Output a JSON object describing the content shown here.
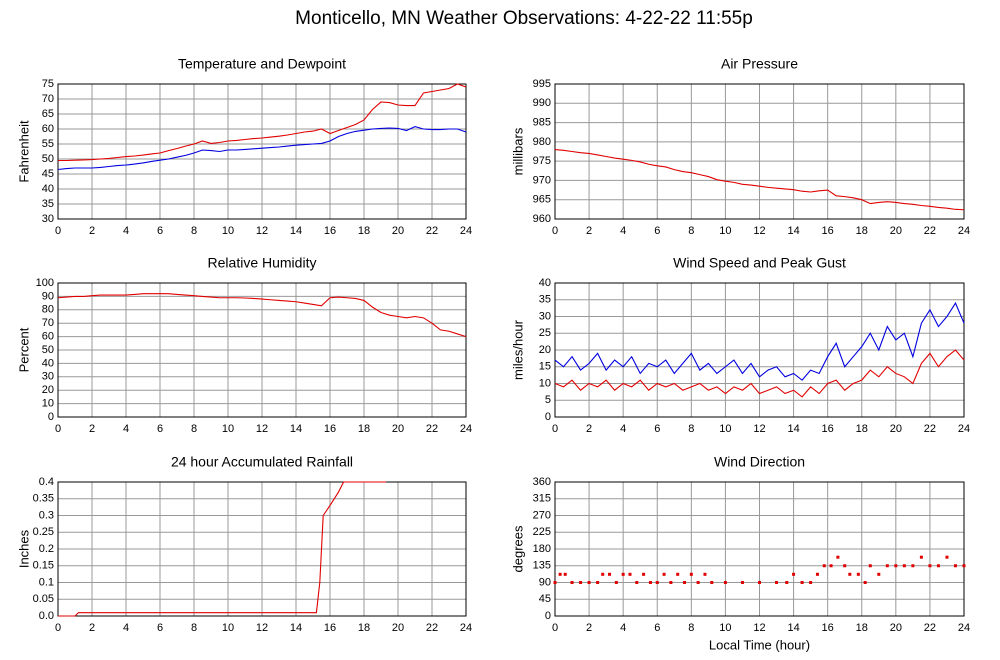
{
  "title": "Monticello, MN Weather Observations: 4-22-22 11:55p",
  "chart_data": [
    {
      "type": "line",
      "title": "Temperature and Dewpoint",
      "ylabel": "Fahrenheit",
      "x": [
        0,
        0.5,
        1,
        1.5,
        2,
        2.5,
        3,
        3.5,
        4,
        4.5,
        5,
        5.5,
        6,
        6.5,
        7,
        7.5,
        8,
        8.5,
        9,
        9.5,
        10,
        10.5,
        11,
        11.5,
        12,
        12.5,
        13,
        13.5,
        14,
        14.5,
        15,
        15.5,
        16,
        16.5,
        17,
        17.5,
        18,
        18.5,
        19,
        19.5,
        20,
        20.5,
        21,
        21.5,
        22,
        22.5,
        23,
        23.5,
        24
      ],
      "series": [
        {
          "color": "#e00000",
          "values": [
            49.5,
            49.5,
            49.6,
            49.7,
            49.8,
            50,
            50.2,
            50.5,
            50.8,
            51,
            51.3,
            51.7,
            52,
            52.8,
            53.5,
            54.3,
            55,
            56,
            55.2,
            55.5,
            56,
            56.2,
            56.5,
            56.8,
            57,
            57.3,
            57.6,
            58,
            58.5,
            59,
            59.3,
            60,
            58.5,
            59.5,
            60.5,
            61.5,
            63,
            66.5,
            69,
            68.8,
            68,
            67.8,
            67.8,
            72,
            72.5,
            73,
            73.5,
            75,
            74
          ]
        },
        {
          "color": "#0000e0",
          "values": [
            46.5,
            46.8,
            47,
            47,
            47,
            47.2,
            47.5,
            47.8,
            48,
            48.3,
            48.7,
            49.2,
            49.6,
            50,
            50.6,
            51.2,
            52,
            53,
            52.8,
            52.5,
            53,
            53,
            53.2,
            53.4,
            53.6,
            53.8,
            54,
            54.3,
            54.6,
            54.8,
            55,
            55.2,
            56,
            57.5,
            58.5,
            59.2,
            59.6,
            60,
            60.2,
            60.3,
            60.2,
            59.5,
            60.8,
            60,
            59.8,
            59.8,
            60,
            60,
            59
          ]
        }
      ],
      "xlim": [
        0,
        24
      ],
      "xticks": [
        0,
        2,
        4,
        6,
        8,
        10,
        12,
        14,
        16,
        18,
        20,
        22,
        24
      ],
      "ylim": [
        30,
        75
      ],
      "yticks": [
        30,
        35,
        40,
        45,
        50,
        55,
        60,
        65,
        70,
        75
      ],
      "grid": true
    },
    {
      "type": "line",
      "title": "Air Pressure",
      "ylabel": "millibars",
      "x": [
        0,
        0.5,
        1,
        1.5,
        2,
        2.5,
        3,
        3.5,
        4,
        4.5,
        5,
        5.5,
        6,
        6.5,
        7,
        7.5,
        8,
        8.5,
        9,
        9.5,
        10,
        10.5,
        11,
        11.5,
        12,
        12.5,
        13,
        13.5,
        14,
        14.5,
        15,
        15.5,
        16,
        16.5,
        17,
        17.5,
        18,
        18.5,
        19,
        19.5,
        20,
        20.5,
        21,
        21.5,
        22,
        22.5,
        23,
        23.5,
        24
      ],
      "series": [
        {
          "color": "#e00000",
          "values": [
            978,
            977.8,
            977.5,
            977.2,
            977,
            976.6,
            976.2,
            975.8,
            975.5,
            975.2,
            974.8,
            974.2,
            973.8,
            973.5,
            972.8,
            972.3,
            972,
            971.5,
            971,
            970.2,
            969.8,
            969.5,
            969,
            968.8,
            968.5,
            968.2,
            968,
            967.8,
            967.6,
            967.2,
            967,
            967.3,
            967.5,
            966,
            965.8,
            965.5,
            965,
            964,
            964.3,
            964.5,
            964.3,
            964,
            963.8,
            963.5,
            963.3,
            963,
            962.8,
            962.5,
            962.4
          ]
        }
      ],
      "xlim": [
        0,
        24
      ],
      "xticks": [
        0,
        2,
        4,
        6,
        8,
        10,
        12,
        14,
        16,
        18,
        20,
        22,
        24
      ],
      "ylim": [
        960,
        995
      ],
      "yticks": [
        960,
        965,
        970,
        975,
        980,
        985,
        990,
        995
      ],
      "grid": true
    },
    {
      "type": "line",
      "title": "Relative Humidity",
      "ylabel": "Percent",
      "x": [
        0,
        0.5,
        1,
        1.5,
        2,
        2.5,
        3,
        3.5,
        4,
        4.5,
        5,
        5.5,
        6,
        6.5,
        7,
        7.5,
        8,
        8.5,
        9,
        9.5,
        10,
        10.5,
        11,
        11.5,
        12,
        12.5,
        13,
        13.5,
        14,
        14.5,
        15,
        15.5,
        16,
        16.5,
        17,
        17.5,
        18,
        18.5,
        19,
        19.5,
        20,
        20.5,
        21,
        21.5,
        22,
        22.5,
        23,
        23.5,
        24
      ],
      "series": [
        {
          "color": "#e00000",
          "values": [
            89,
            89.5,
            90,
            90,
            90.5,
            91,
            91,
            91,
            91,
            91.5,
            92,
            92,
            92,
            92,
            91.5,
            91,
            90.5,
            90,
            89.5,
            89,
            89,
            89,
            88.8,
            88.5,
            88,
            87.5,
            87,
            86.5,
            86,
            85,
            84,
            83,
            89,
            89.5,
            89,
            88.5,
            87,
            82,
            78,
            76,
            75,
            74,
            75,
            74,
            70,
            65,
            64,
            62,
            60
          ]
        }
      ],
      "xlim": [
        0,
        24
      ],
      "xticks": [
        0,
        2,
        4,
        6,
        8,
        10,
        12,
        14,
        16,
        18,
        20,
        22,
        24
      ],
      "ylim": [
        0,
        100
      ],
      "yticks": [
        0,
        10,
        20,
        30,
        40,
        50,
        60,
        70,
        80,
        90,
        100
      ],
      "grid": true
    },
    {
      "type": "line",
      "title": "Wind Speed and Peak Gust",
      "ylabel": "miles/hour",
      "x": [
        0,
        0.5,
        1,
        1.5,
        2,
        2.5,
        3,
        3.5,
        4,
        4.5,
        5,
        5.5,
        6,
        6.5,
        7,
        7.5,
        8,
        8.5,
        9,
        9.5,
        10,
        10.5,
        11,
        11.5,
        12,
        12.5,
        13,
        13.5,
        14,
        14.5,
        15,
        15.5,
        16,
        16.5,
        17,
        17.5,
        18,
        18.5,
        19,
        19.5,
        20,
        20.5,
        21,
        21.5,
        22,
        22.5,
        23,
        23.5,
        24
      ],
      "series": [
        {
          "color": "#0000e0",
          "values": [
            17,
            15,
            18,
            14,
            16,
            19,
            14,
            17,
            15,
            18,
            13,
            16,
            15,
            17,
            13,
            16,
            19,
            14,
            16,
            13,
            15,
            17,
            13,
            16,
            12,
            14,
            15,
            12,
            13,
            11,
            14,
            13,
            18,
            22,
            15,
            18,
            21,
            25,
            20,
            27,
            23,
            25,
            18,
            28,
            32,
            27,
            30,
            34,
            28
          ]
        },
        {
          "color": "#e00000",
          "values": [
            10,
            9,
            11,
            8,
            10,
            9,
            11,
            8,
            10,
            9,
            11,
            8,
            10,
            9,
            10,
            8,
            9,
            10,
            8,
            9,
            7,
            9,
            8,
            10,
            7,
            8,
            9,
            7,
            8,
            6,
            9,
            7,
            10,
            11,
            8,
            10,
            11,
            14,
            12,
            15,
            13,
            12,
            10,
            16,
            19,
            15,
            18,
            20,
            17
          ]
        }
      ],
      "xlim": [
        0,
        24
      ],
      "xticks": [
        0,
        2,
        4,
        6,
        8,
        10,
        12,
        14,
        16,
        18,
        20,
        22,
        24
      ],
      "ylim": [
        0,
        40
      ],
      "yticks": [
        0,
        5,
        10,
        15,
        20,
        25,
        30,
        35,
        40
      ],
      "grid": true
    },
    {
      "type": "line",
      "title": "24 hour Accumulated Rainfall",
      "ylabel": "Inches",
      "x": [
        0,
        1,
        1.2,
        15.2,
        15.4,
        15.6,
        16,
        16.5,
        16.8,
        19.3
      ],
      "series": [
        {
          "color": "#e00000",
          "values": [
            0,
            0,
            0.01,
            0.01,
            0.1,
            0.3,
            0.33,
            0.37,
            0.4,
            0.4
          ]
        }
      ],
      "xlim": [
        0,
        24
      ],
      "xticks": [
        0,
        2,
        4,
        6,
        8,
        10,
        12,
        14,
        16,
        18,
        20,
        22,
        24
      ],
      "ylim": [
        0,
        0.4
      ],
      "yticks": [
        {
          "value": 0,
          "label": "0.0"
        },
        0.05,
        0.1,
        0.15,
        0.2,
        0.25,
        0.3,
        0.35,
        0.4
      ],
      "grid": true
    },
    {
      "type": "scatter",
      "title": "Wind Direction",
      "ylabel": "degrees",
      "xlabel": "Local Time (hour)",
      "x": [
        0,
        0.3,
        0.6,
        1,
        1.5,
        2,
        2.5,
        2.8,
        3.2,
        3.6,
        4,
        4.4,
        4.8,
        5.2,
        5.6,
        6,
        6.4,
        6.8,
        7.2,
        7.6,
        8,
        8.4,
        8.8,
        9.2,
        10,
        11,
        12,
        13,
        13.6,
        14,
        14.5,
        15,
        15.4,
        15.8,
        16.2,
        16.6,
        17,
        17.3,
        17.8,
        18.2,
        18.5,
        19,
        19.5,
        20,
        20.5,
        21,
        21.5,
        22,
        22.5,
        23,
        23.5,
        24
      ],
      "series": [
        {
          "color": "#e00000",
          "values": [
            90,
            112,
            112,
            90,
            90,
            90,
            90,
            112,
            112,
            90,
            112,
            112,
            90,
            112,
            90,
            90,
            112,
            90,
            112,
            90,
            112,
            90,
            112,
            90,
            90,
            90,
            90,
            90,
            90,
            112,
            90,
            90,
            112,
            135,
            135,
            158,
            135,
            112,
            112,
            90,
            135,
            112,
            135,
            135,
            135,
            135,
            158,
            135,
            135,
            158,
            135,
            135
          ]
        }
      ],
      "xlim": [
        0,
        24
      ],
      "xticks": [
        0,
        2,
        4,
        6,
        8,
        10,
        12,
        14,
        16,
        18,
        20,
        22,
        24
      ],
      "ylim": [
        0,
        360
      ],
      "yticks": [
        0,
        45,
        90,
        135,
        180,
        225,
        270,
        315,
        360
      ],
      "grid": true
    }
  ]
}
